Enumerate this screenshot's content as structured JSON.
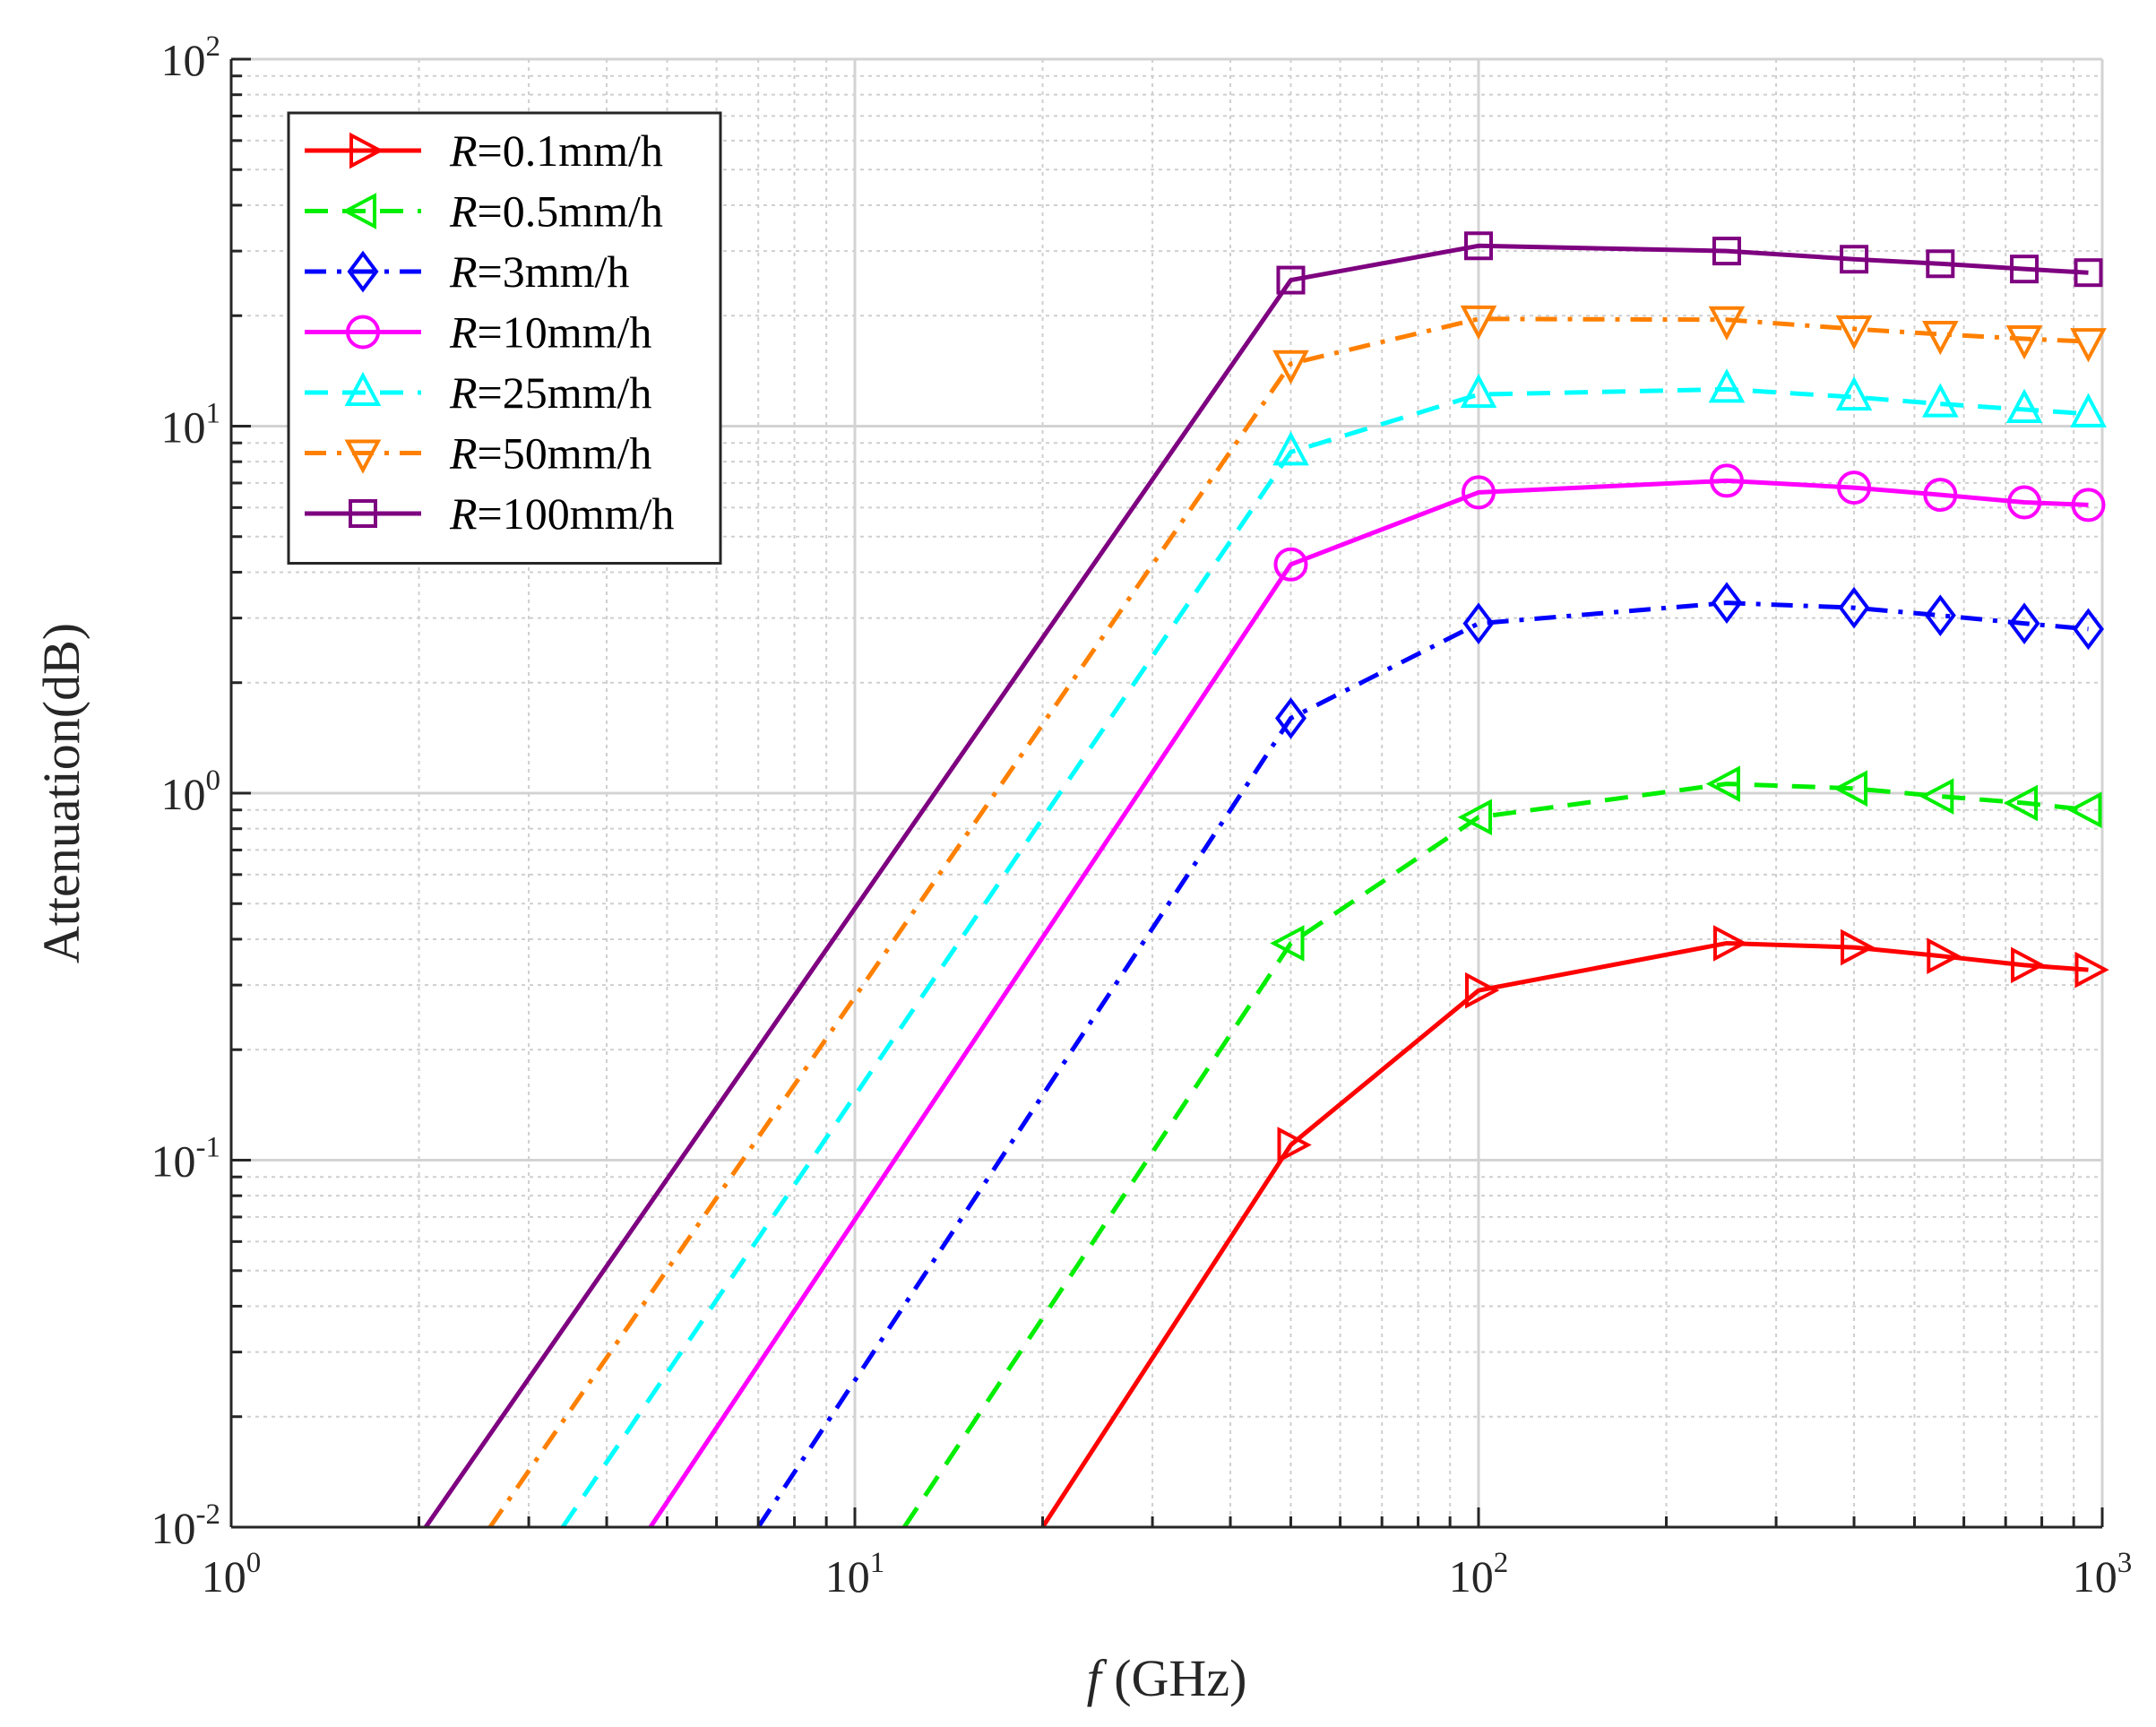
{
  "chart_data": {
    "type": "line",
    "xscale": "log",
    "yscale": "log",
    "xlim": [
      1,
      1000
    ],
    "ylim": [
      0.01,
      100
    ],
    "xlabel_italic": "f",
    "xlabel_rest": " (GHz)",
    "ylabel": "Attenuation(dB)",
    "grid": true,
    "legend_position": "top-left",
    "legend_prefix": "R",
    "xticks": [
      {
        "base": "10",
        "exp": "0",
        "value": 1
      },
      {
        "base": "10",
        "exp": "1",
        "value": 10
      },
      {
        "base": "10",
        "exp": "2",
        "value": 100
      },
      {
        "base": "10",
        "exp": "3",
        "value": 1000
      }
    ],
    "yticks": [
      {
        "base": "10",
        "exp": "-2",
        "value": 0.01
      },
      {
        "base": "10",
        "exp": "-1",
        "value": 0.1
      },
      {
        "base": "10",
        "exp": "0",
        "value": 1
      },
      {
        "base": "10",
        "exp": "1",
        "value": 10
      },
      {
        "base": "10",
        "exp": "2",
        "value": 100
      }
    ],
    "series": [
      {
        "name": "R=0.1mm/h",
        "legend_rest": "=0.1mm/h",
        "color": "#ff0000",
        "dash": "solid",
        "marker": "triangle-right",
        "x": [
          20,
          50,
          100,
          250,
          400,
          550,
          750,
          950
        ],
        "y": [
          0.01,
          0.11,
          0.29,
          0.39,
          0.38,
          0.36,
          0.34,
          0.33
        ],
        "marker_x": [
          50,
          100,
          250,
          400,
          550,
          750,
          950
        ]
      },
      {
        "name": "R=0.5mm/h",
        "legend_rest": "=0.5mm/h",
        "color": "#00ee00",
        "dash": "dashed",
        "marker": "triangle-left",
        "x": [
          12,
          50,
          100,
          250,
          400,
          550,
          750,
          950
        ],
        "y": [
          0.01,
          0.39,
          0.86,
          1.06,
          1.03,
          0.98,
          0.94,
          0.9
        ],
        "marker_x": [
          50,
          100,
          250,
          400,
          550,
          750,
          950
        ]
      },
      {
        "name": "R=3mm/h",
        "legend_rest": "=3mm/h",
        "color": "#0000ff",
        "dash": "dashdot",
        "marker": "diamond",
        "x": [
          7,
          50,
          100,
          250,
          400,
          550,
          750,
          950
        ],
        "y": [
          0.01,
          1.6,
          2.9,
          3.3,
          3.2,
          3.05,
          2.9,
          2.8
        ],
        "marker_x": [
          50,
          100,
          250,
          400,
          550,
          750,
          950
        ]
      },
      {
        "name": "R=10mm/h",
        "legend_rest": "=10mm/h",
        "color": "#ff00ff",
        "dash": "solid",
        "marker": "circle",
        "x": [
          4.7,
          50,
          100,
          250,
          400,
          550,
          750,
          950
        ],
        "y": [
          0.01,
          4.2,
          6.6,
          7.1,
          6.8,
          6.5,
          6.2,
          6.1
        ],
        "marker_x": [
          50,
          100,
          250,
          400,
          550,
          750,
          950
        ]
      },
      {
        "name": "R=25mm/h",
        "legend_rest": "=25mm/h",
        "color": "#00ffff",
        "dash": "dashed",
        "marker": "triangle-up",
        "x": [
          3.4,
          50,
          100,
          250,
          400,
          550,
          750,
          950
        ],
        "y": [
          0.01,
          8.5,
          12.2,
          12.6,
          12.0,
          11.5,
          11.1,
          10.8
        ],
        "marker_x": [
          50,
          100,
          250,
          400,
          550,
          750,
          950
        ]
      },
      {
        "name": "R=50mm/h",
        "legend_rest": "=50mm/h",
        "color": "#ff8000",
        "dash": "dashdot",
        "marker": "triangle-down",
        "x": [
          2.6,
          50,
          100,
          250,
          400,
          550,
          750,
          950
        ],
        "y": [
          0.01,
          14.8,
          19.6,
          19.5,
          18.4,
          17.8,
          17.3,
          17.0
        ],
        "marker_x": [
          50,
          100,
          250,
          400,
          550,
          750,
          950
        ]
      },
      {
        "name": "R=100mm/h",
        "legend_rest": "=100mm/h",
        "color": "#7e0080",
        "dash": "solid",
        "marker": "square",
        "x": [
          2.05,
          50,
          100,
          250,
          400,
          550,
          750,
          950
        ],
        "y": [
          0.01,
          25.0,
          31.0,
          30.0,
          28.5,
          27.7,
          26.8,
          26.2
        ],
        "marker_x": [
          50,
          100,
          250,
          400,
          550,
          750,
          950
        ]
      }
    ]
  }
}
